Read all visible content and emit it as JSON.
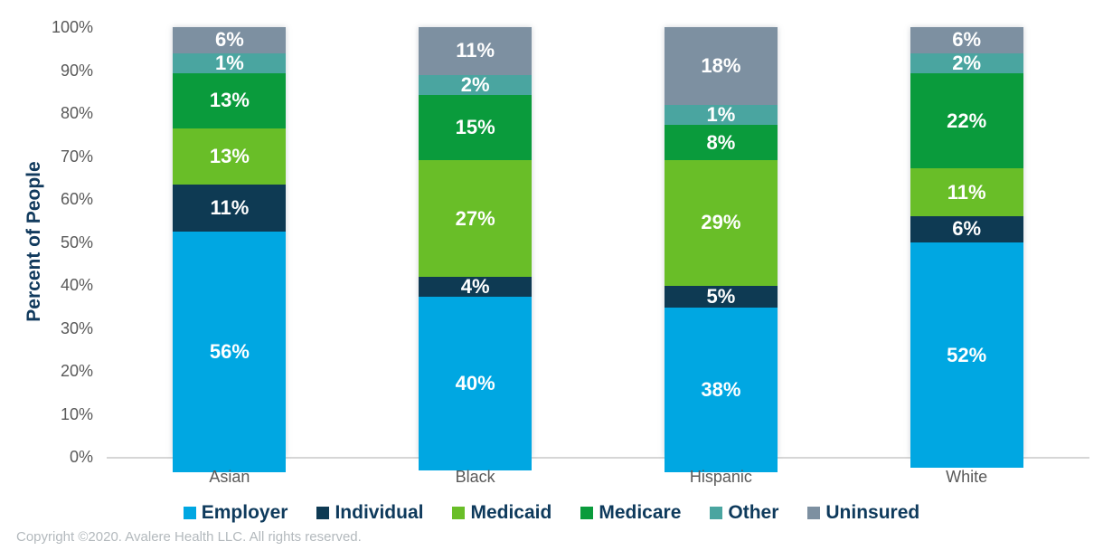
{
  "chart_data": {
    "type": "bar",
    "stacked": true,
    "title": "",
    "xlabel": "",
    "ylabel": "Percent of People",
    "ylim": [
      0,
      100
    ],
    "yticks": [
      "0%",
      "10%",
      "20%",
      "30%",
      "40%",
      "50%",
      "60%",
      "70%",
      "80%",
      "90%",
      "100%"
    ],
    "grid": false,
    "legend_position": "bottom",
    "value_suffix": "%",
    "categories": [
      "Asian",
      "Black",
      "Hispanic",
      "White"
    ],
    "series": [
      {
        "name": "Employer",
        "color": "#00A7E2",
        "values": [
          56,
          40,
          38,
          52
        ]
      },
      {
        "name": "Individual",
        "color": "#0E3A53",
        "values": [
          11,
          4,
          5,
          6
        ]
      },
      {
        "name": "Medicaid",
        "color": "#69BE28",
        "values": [
          13,
          27,
          29,
          11
        ]
      },
      {
        "name": "Medicare",
        "color": "#0A9B3C",
        "values": [
          13,
          15,
          8,
          22
        ]
      },
      {
        "name": "Other",
        "color": "#4AA5A0",
        "values": [
          1,
          2,
          1,
          2
        ]
      },
      {
        "name": "Uninsured",
        "color": "#7D90A1",
        "values": [
          6,
          11,
          18,
          6
        ]
      }
    ]
  },
  "footer": {
    "copyright": "Copyright ©2020. Avalere Health LLC. All rights reserved."
  },
  "styles": {
    "axis_text_color": "#595959",
    "ylabel_color": "#113A5D",
    "legend_text_color": "#0E3A5C",
    "axis_line_color": "#D6D6D6",
    "bar_label_color": "#FFFFFF",
    "copyright_color": "#B3B9BD",
    "background": "#FFFFFF"
  }
}
